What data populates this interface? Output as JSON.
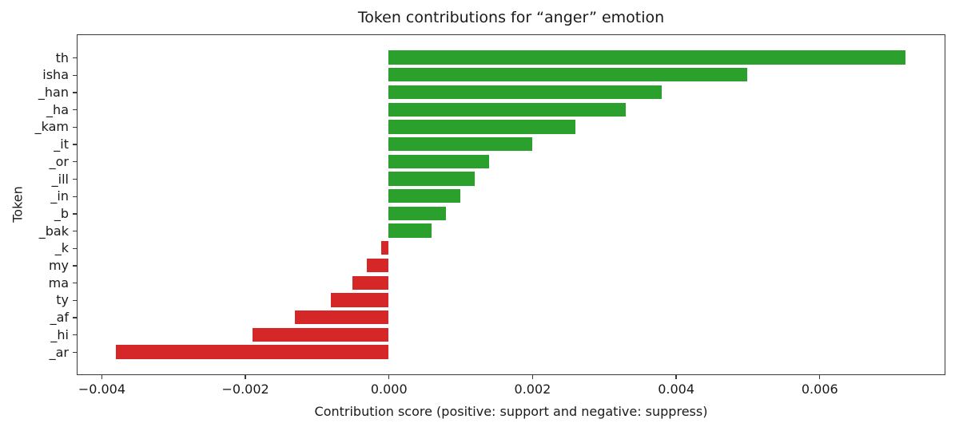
{
  "chart_data": {
    "type": "bar",
    "orientation": "horizontal",
    "title": "Token contributions for “anger” emotion",
    "xlabel": "Contribution score (positive: support and negative: suppress)",
    "ylabel": "Token",
    "categories": [
      "th",
      "isha",
      "_han",
      "_ha",
      "_kam",
      "_it",
      "_or",
      "_ill",
      "_in",
      "_b",
      "_bak",
      "_k",
      "my",
      "ma",
      "ty",
      "_af",
      "_hi",
      "_ar"
    ],
    "values": [
      0.0072,
      0.005,
      0.0038,
      0.0033,
      0.0026,
      0.002,
      0.0014,
      0.0012,
      0.001,
      0.0008,
      0.0006,
      -0.0001,
      -0.0003,
      -0.0005,
      -0.0008,
      -0.0013,
      -0.0019,
      -0.0038
    ],
    "xlim": [
      -0.00435,
      0.00775
    ],
    "xticks": [
      -0.004,
      -0.002,
      0.0,
      0.002,
      0.004,
      0.006
    ],
    "xtick_labels": [
      "−0.004",
      "−0.002",
      "0.000",
      "0.002",
      "0.004",
      "0.006"
    ],
    "positive_color": "#2ca02c",
    "negative_color": "#d62728",
    "grid": false,
    "legend": null
  }
}
